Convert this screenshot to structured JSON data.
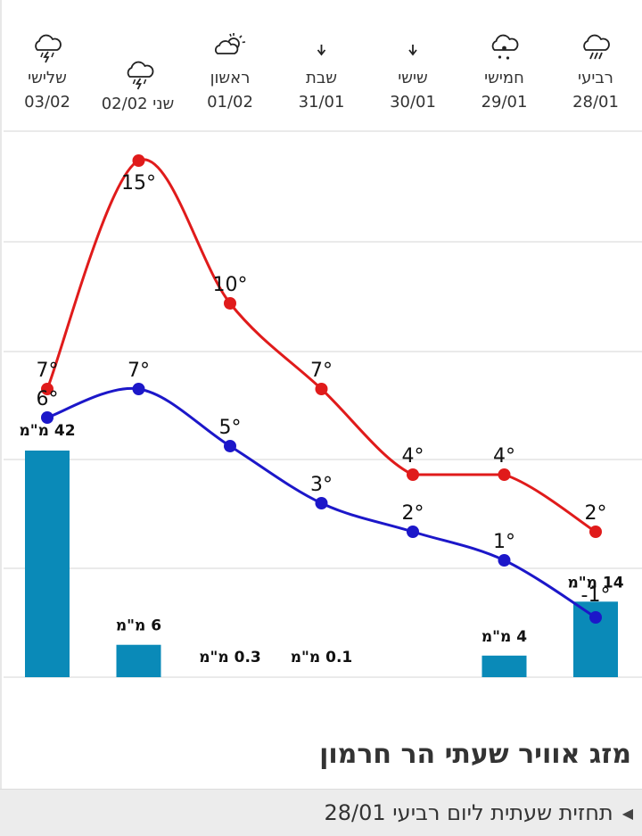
{
  "chart_data": {
    "type": "line",
    "days": [
      {
        "name": "רביעי",
        "date": "28/01",
        "icon": "rain-icon",
        "high": 2,
        "low": -1,
        "precip": 14,
        "precip_label": "14 מ\"מ"
      },
      {
        "name": "חמישי",
        "date": "29/01",
        "icon": "drizzle-cloud-icon",
        "high": 4,
        "low": 1,
        "precip": 4,
        "precip_label": "4 מ\"מ"
      },
      {
        "name": "שישי",
        "date": "30/01",
        "icon": "arrow-down-icon",
        "high": 4,
        "low": 2,
        "precip": 0,
        "precip_label": ""
      },
      {
        "name": "שבת",
        "date": "31/01",
        "icon": "arrow-down-icon",
        "high": 7,
        "low": 3,
        "precip": 0.1,
        "precip_label": "0.1 מ\"מ"
      },
      {
        "name": "ראשון",
        "date": "01/02",
        "icon": "partly-cloudy-sun-icon",
        "high": 10,
        "low": 5,
        "precip": 0.3,
        "precip_label": "0.3 מ\"מ"
      },
      {
        "name": "שני",
        "date": "02/02",
        "icon": "thunderstorm-icon",
        "high": 15,
        "low": 7,
        "precip": 6,
        "precip_label": "6 מ\"מ"
      },
      {
        "name": "שלישי",
        "date": "03/02",
        "icon": "thunderstorm-icon",
        "high": 7,
        "low": 6,
        "precip": 42,
        "precip_label": "42 מ\"מ"
      }
    ],
    "temp_unit": "°",
    "colors": {
      "high": "#e01b1b",
      "low": "#1c17c9",
      "bars": "#0a8ab8",
      "grid": "#e3e3e3"
    }
  },
  "section_title": "מזג אוויר שעתי הר חרמון",
  "hourly": {
    "label": "תחזית שעתית ליום רביעי 28/01",
    "arrow": "◀"
  }
}
